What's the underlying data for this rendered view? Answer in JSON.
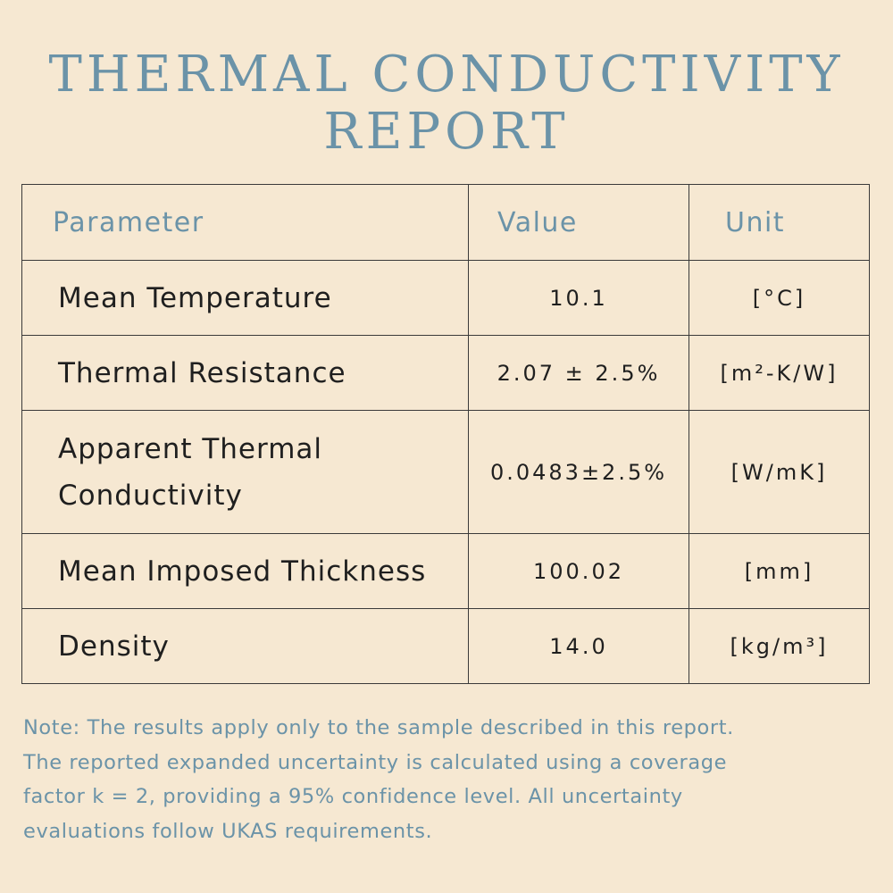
{
  "title": {
    "line1": "THERMAL CONDUCTIVITY",
    "line2": "REPORT"
  },
  "table": {
    "headers": {
      "parameter": "Parameter",
      "value": "Value",
      "unit": "Unit"
    },
    "rows": [
      {
        "parameter": "Mean Temperature",
        "value": "10.1",
        "unit": "[°C]"
      },
      {
        "parameter": "Thermal Resistance",
        "value": "2.07 ± 2.5%",
        "unit": "[m²-K/W]"
      },
      {
        "parameter_line1": "Apparent Thermal",
        "parameter_line2": "Conductivity",
        "value": "0.0483±2.5%",
        "unit": "[W/mK]"
      },
      {
        "parameter": "Mean Imposed Thickness",
        "value": "100.02",
        "unit": "[mm]"
      },
      {
        "parameter": "Density",
        "value": "14.0",
        "unit": "[kg/m³]"
      }
    ]
  },
  "note": {
    "line1": "Note: The results apply only to the sample described in this report.",
    "line2": "The reported expanded uncertainty is calculated using a coverage",
    "line3": "factor k = 2, providing a 95% confidence level. All uncertainty",
    "line4": "evaluations follow UKAS requirements."
  }
}
